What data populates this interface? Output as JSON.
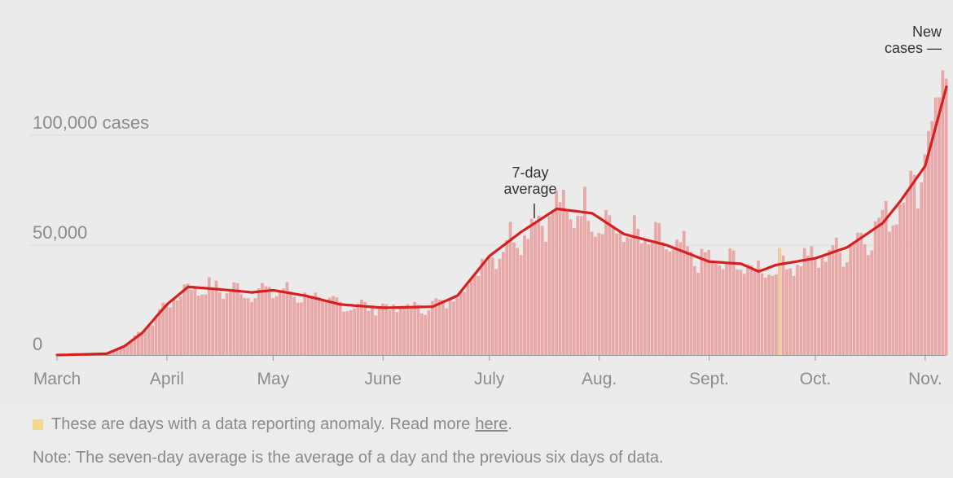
{
  "chart_data": {
    "type": "bar",
    "title": "",
    "xlabel": "",
    "ylabel": "",
    "ylim": [
      0,
      140000
    ],
    "y_ticks": [
      {
        "value": 0,
        "label": "0"
      },
      {
        "value": 50000,
        "label": "50,000"
      },
      {
        "value": 100000,
        "label": "100,000 cases"
      }
    ],
    "x_ticks": [
      {
        "date": "2020-03-01",
        "label": "March"
      },
      {
        "date": "2020-04-01",
        "label": "April"
      },
      {
        "date": "2020-05-01",
        "label": "May"
      },
      {
        "date": "2020-06-01",
        "label": "June"
      },
      {
        "date": "2020-07-01",
        "label": "July"
      },
      {
        "date": "2020-08-01",
        "label": "Aug."
      },
      {
        "date": "2020-09-01",
        "label": "Sept."
      },
      {
        "date": "2020-10-01",
        "label": "Oct."
      },
      {
        "date": "2020-11-01",
        "label": "Nov."
      }
    ],
    "date_range": [
      "2020-03-01",
      "2020-11-07"
    ],
    "grid": true,
    "series": [
      {
        "name": "New cases",
        "type": "bar",
        "color": "#e8a8a8",
        "values": []
      },
      {
        "name": "7-day average",
        "type": "line",
        "color": "#d61f1f",
        "points": [
          {
            "x": "2020-03-01",
            "y": 0
          },
          {
            "x": "2020-03-15",
            "y": 600
          },
          {
            "x": "2020-03-20",
            "y": 4000
          },
          {
            "x": "2020-03-25",
            "y": 10000
          },
          {
            "x": "2020-04-01",
            "y": 23000
          },
          {
            "x": "2020-04-07",
            "y": 31000
          },
          {
            "x": "2020-04-15",
            "y": 30000
          },
          {
            "x": "2020-04-25",
            "y": 28500
          },
          {
            "x": "2020-05-01",
            "y": 29500
          },
          {
            "x": "2020-05-10",
            "y": 27000
          },
          {
            "x": "2020-05-20",
            "y": 23000
          },
          {
            "x": "2020-06-01",
            "y": 21500
          },
          {
            "x": "2020-06-15",
            "y": 22000
          },
          {
            "x": "2020-06-22",
            "y": 27000
          },
          {
            "x": "2020-07-01",
            "y": 45000
          },
          {
            "x": "2020-07-10",
            "y": 56000
          },
          {
            "x": "2020-07-20",
            "y": 66500
          },
          {
            "x": "2020-07-30",
            "y": 64500
          },
          {
            "x": "2020-08-08",
            "y": 55000
          },
          {
            "x": "2020-08-20",
            "y": 50000
          },
          {
            "x": "2020-09-01",
            "y": 42500
          },
          {
            "x": "2020-09-10",
            "y": 41500
          },
          {
            "x": "2020-09-15",
            "y": 38000
          },
          {
            "x": "2020-09-20",
            "y": 41000
          },
          {
            "x": "2020-10-01",
            "y": 44000
          },
          {
            "x": "2020-10-10",
            "y": 49000
          },
          {
            "x": "2020-10-20",
            "y": 60000
          },
          {
            "x": "2020-10-25",
            "y": 70000
          },
          {
            "x": "2020-11-01",
            "y": 86000
          },
          {
            "x": "2020-11-07",
            "y": 122000
          }
        ]
      }
    ],
    "anomaly_days": [
      "2020-09-21"
    ],
    "annotations": [
      {
        "text": [
          "7-day",
          "average"
        ],
        "target": "7-day average line"
      },
      {
        "text": [
          "New",
          "cases —"
        ],
        "target": "new cases bars"
      }
    ]
  },
  "legend": {
    "anomaly_text": "These are days with a data reporting anomaly. Read more",
    "anomaly_link": "here",
    "anomaly_suffix": ".",
    "anomaly_color": "#f3d98e"
  },
  "note": "Note: The seven-day average is the average of a day and the previous six days of data."
}
